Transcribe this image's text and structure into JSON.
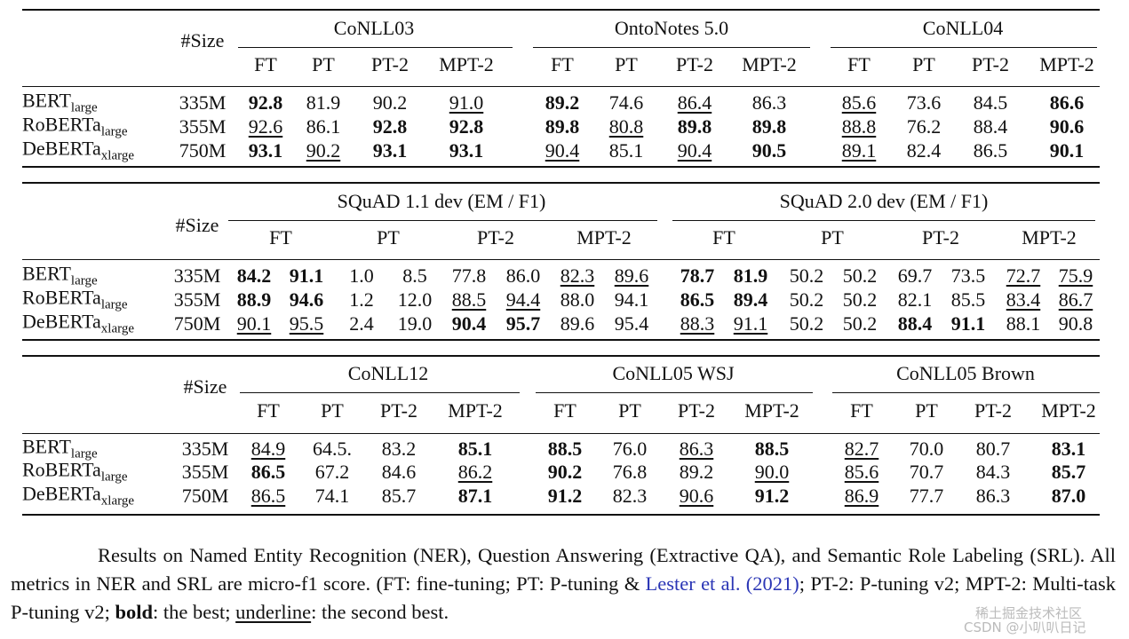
{
  "tables": [
    {
      "size_header": "#Size",
      "groups": [
        "CoNLL03",
        "OntoNotes 5.0",
        "CoNLL04"
      ],
      "columns": [
        "FT",
        "PT",
        "PT-2",
        "MPT-2",
        "FT",
        "PT",
        "PT-2",
        "MPT-2",
        "FT",
        "PT",
        "PT-2",
        "MPT-2"
      ],
      "rows": [
        {
          "model": "BERT",
          "sub": "large",
          "size": "335M",
          "cells": [
            {
              "text": "92.8",
              "style": "bold"
            },
            {
              "text": "81.9"
            },
            {
              "text": "90.2"
            },
            {
              "text": "91.0",
              "style": "underline"
            },
            {
              "text": "89.2",
              "style": "bold"
            },
            {
              "text": "74.6"
            },
            {
              "text": "86.4",
              "style": "underline"
            },
            {
              "text": "86.3"
            },
            {
              "text": "85.6",
              "style": "underline"
            },
            {
              "text": "73.6"
            },
            {
              "text": "84.5"
            },
            {
              "text": "86.6",
              "style": "bold"
            }
          ]
        },
        {
          "model": "RoBERTa",
          "sub": "large",
          "size": "355M",
          "cells": [
            {
              "text": "92.6",
              "style": "underline"
            },
            {
              "text": "86.1"
            },
            {
              "text": "92.8",
              "style": "bold"
            },
            {
              "text": "92.8",
              "style": "bold"
            },
            {
              "text": "89.8",
              "style": "bold"
            },
            {
              "text": "80.8",
              "style": "underline"
            },
            {
              "text": "89.8",
              "style": "bold"
            },
            {
              "text": "89.8",
              "style": "bold"
            },
            {
              "text": "88.8",
              "style": "underline"
            },
            {
              "text": "76.2"
            },
            {
              "text": "88.4"
            },
            {
              "text": "90.6",
              "style": "bold"
            }
          ]
        },
        {
          "model": "DeBERTa",
          "sub": "xlarge",
          "size": "750M",
          "cells": [
            {
              "text": "93.1",
              "style": "bold"
            },
            {
              "text": "90.2",
              "style": "underline"
            },
            {
              "text": "93.1",
              "style": "bold"
            },
            {
              "text": "93.1",
              "style": "bold"
            },
            {
              "text": "90.4",
              "style": "underline"
            },
            {
              "text": "85.1"
            },
            {
              "text": "90.4",
              "style": "underline"
            },
            {
              "text": "90.5",
              "style": "bold"
            },
            {
              "text": "89.1",
              "style": "underline"
            },
            {
              "text": "82.4"
            },
            {
              "text": "86.5"
            },
            {
              "text": "90.1",
              "style": "bold"
            }
          ]
        }
      ]
    },
    {
      "size_header": "#Size",
      "groups": [
        "SQuAD 1.1 dev (EM / F1)",
        "SQuAD 2.0 dev (EM / F1)"
      ],
      "columns": [
        "FT",
        "PT",
        "PT-2",
        "MPT-2",
        "FT",
        "PT",
        "PT-2",
        "MPT-2"
      ],
      "rows": [
        {
          "model": "BERT",
          "sub": "large",
          "size": "335M",
          "cells": [
            {
              "text": "84.2",
              "style": "bold"
            },
            {
              "text": "91.1",
              "style": "bold"
            },
            {
              "text": "1.0"
            },
            {
              "text": "8.5"
            },
            {
              "text": "77.8"
            },
            {
              "text": "86.0"
            },
            {
              "text": "82.3",
              "style": "underline"
            },
            {
              "text": "89.6",
              "style": "underline"
            },
            {
              "text": "78.7",
              "style": "bold"
            },
            {
              "text": "81.9",
              "style": "bold"
            },
            {
              "text": "50.2"
            },
            {
              "text": "50.2"
            },
            {
              "text": "69.7"
            },
            {
              "text": "73.5"
            },
            {
              "text": "72.7",
              "style": "underline"
            },
            {
              "text": "75.9",
              "style": "underline"
            }
          ]
        },
        {
          "model": "RoBERTa",
          "sub": "large",
          "size": "355M",
          "cells": [
            {
              "text": "88.9",
              "style": "bold"
            },
            {
              "text": "94.6",
              "style": "bold"
            },
            {
              "text": "1.2"
            },
            {
              "text": "12.0"
            },
            {
              "text": "88.5",
              "style": "underline"
            },
            {
              "text": "94.4",
              "style": "underline"
            },
            {
              "text": "88.0"
            },
            {
              "text": "94.1"
            },
            {
              "text": "86.5",
              "style": "bold"
            },
            {
              "text": "89.4",
              "style": "bold"
            },
            {
              "text": "50.2"
            },
            {
              "text": "50.2"
            },
            {
              "text": "82.1"
            },
            {
              "text": "85.5"
            },
            {
              "text": "83.4",
              "style": "underline"
            },
            {
              "text": "86.7",
              "style": "underline"
            }
          ]
        },
        {
          "model": "DeBERTa",
          "sub": "xlarge",
          "size": "750M",
          "cells": [
            {
              "text": "90.1",
              "style": "underline"
            },
            {
              "text": "95.5",
              "style": "underline"
            },
            {
              "text": "2.4"
            },
            {
              "text": "19.0"
            },
            {
              "text": "90.4",
              "style": "bold"
            },
            {
              "text": "95.7",
              "style": "bold"
            },
            {
              "text": "89.6"
            },
            {
              "text": "95.4"
            },
            {
              "text": "88.3",
              "style": "underline"
            },
            {
              "text": "91.1",
              "style": "underline"
            },
            {
              "text": "50.2"
            },
            {
              "text": "50.2"
            },
            {
              "text": "88.4",
              "style": "bold"
            },
            {
              "text": "91.1",
              "style": "bold"
            },
            {
              "text": "88.1"
            },
            {
              "text": "90.8"
            }
          ]
        }
      ]
    },
    {
      "size_header": "#Size",
      "groups": [
        "CoNLL12",
        "CoNLL05 WSJ",
        "CoNLL05 Brown"
      ],
      "columns": [
        "FT",
        "PT",
        "PT-2",
        "MPT-2",
        "FT",
        "PT",
        "PT-2",
        "MPT-2",
        "FT",
        "PT",
        "PT-2",
        "MPT-2"
      ],
      "rows": [
        {
          "model": "BERT",
          "sub": "large",
          "size": "335M",
          "cells": [
            {
              "text": "84.9",
              "style": "underline"
            },
            {
              "text": "64.5."
            },
            {
              "text": "83.2"
            },
            {
              "text": "85.1",
              "style": "bold"
            },
            {
              "text": "88.5",
              "style": "bold"
            },
            {
              "text": "76.0"
            },
            {
              "text": "86.3",
              "style": "underline"
            },
            {
              "text": "88.5",
              "style": "bold"
            },
            {
              "text": "82.7",
              "style": "underline"
            },
            {
              "text": "70.0"
            },
            {
              "text": "80.7"
            },
            {
              "text": "83.1",
              "style": "bold"
            }
          ]
        },
        {
          "model": "RoBERTa",
          "sub": "large",
          "size": "355M",
          "cells": [
            {
              "text": "86.5",
              "style": "bold"
            },
            {
              "text": "67.2"
            },
            {
              "text": "84.6"
            },
            {
              "text": "86.2",
              "style": "underline"
            },
            {
              "text": "90.2",
              "style": "bold"
            },
            {
              "text": "76.8"
            },
            {
              "text": "89.2"
            },
            {
              "text": "90.0",
              "style": "underline"
            },
            {
              "text": "85.6",
              "style": "underline"
            },
            {
              "text": "70.7"
            },
            {
              "text": "84.3"
            },
            {
              "text": "85.7",
              "style": "bold"
            }
          ]
        },
        {
          "model": "DeBERTa",
          "sub": "xlarge",
          "size": "750M",
          "cells": [
            {
              "text": "86.5",
              "style": "underline"
            },
            {
              "text": "74.1"
            },
            {
              "text": "85.7"
            },
            {
              "text": "87.1",
              "style": "bold"
            },
            {
              "text": "91.2",
              "style": "bold"
            },
            {
              "text": "82.3"
            },
            {
              "text": "90.6",
              "style": "underline"
            },
            {
              "text": "91.2",
              "style": "bold"
            },
            {
              "text": "86.9",
              "style": "underline"
            },
            {
              "text": "77.7"
            },
            {
              "text": "86.3"
            },
            {
              "text": "87.0",
              "style": "bold"
            }
          ]
        }
      ]
    }
  ],
  "caption": [
    {
      "text": "Results on Named Entity Recognition (NER), Question Answering (Extractive QA), and Semantic Role Labeling (SRL). All metrics in NER and SRL are micro-f1 score. (FT: fine-tuning; PT: P-tuning & "
    },
    {
      "text": "Lester et al. (2021)",
      "style": "link"
    },
    {
      "text": "; PT-2: P-tuning v2; MPT-2: Multi-task P-tuning v2; "
    },
    {
      "text": "bold",
      "style": "bold"
    },
    {
      "text": ": the best; "
    },
    {
      "text": "underline",
      "style": "underline"
    },
    {
      "text": ": the second best."
    }
  ],
  "watermark": [
    "稀土掘金技术社区",
    "CSDN @小叭叭日记"
  ]
}
